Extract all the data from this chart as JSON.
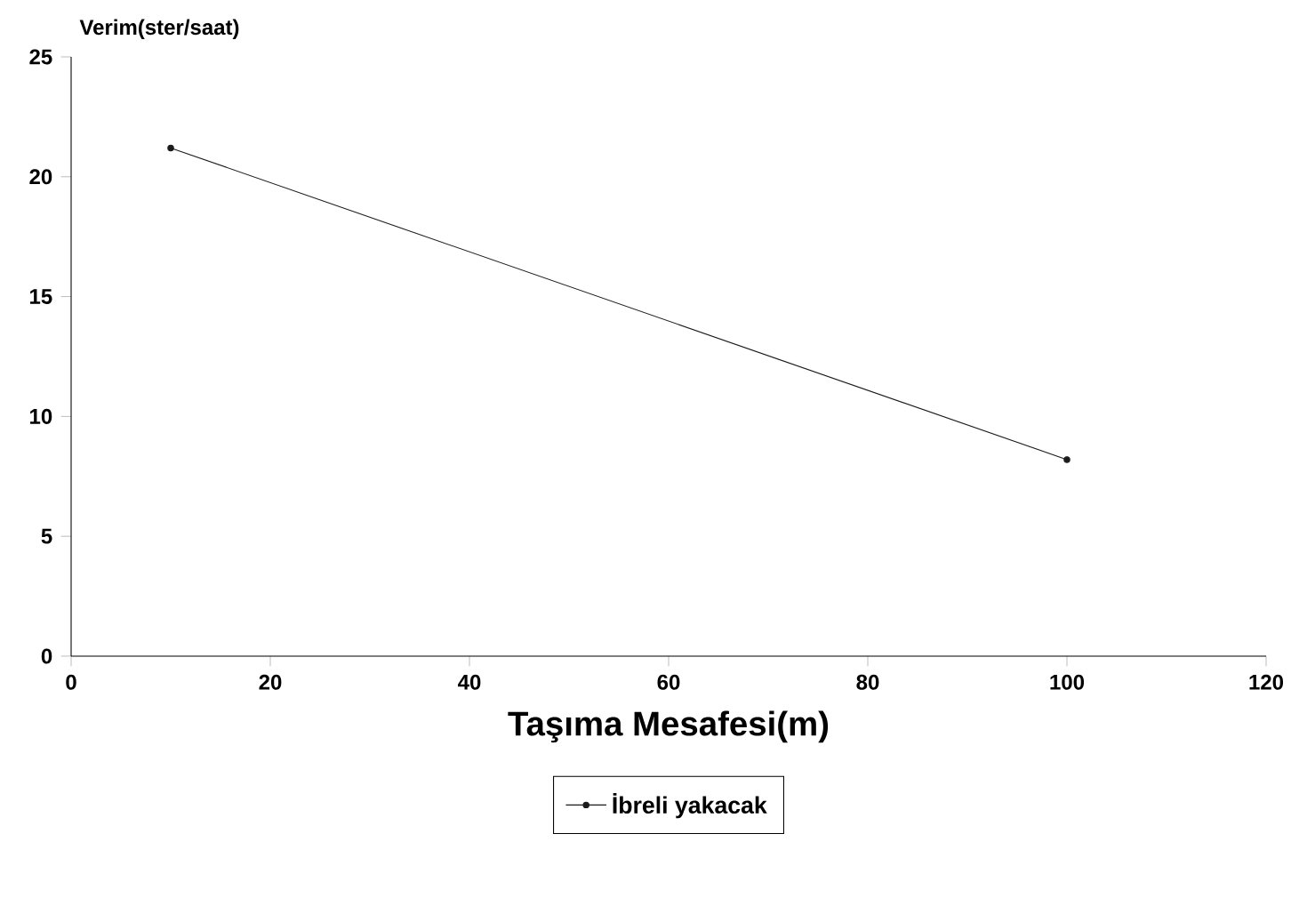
{
  "chart_data": {
    "type": "line",
    "xlabel": "Taşıma Mesafesi(m)",
    "ylabel": "Verim(ster/saat)",
    "x": [
      10,
      100
    ],
    "series": [
      {
        "name": "İbreli yakacak",
        "color": "#1a1a1a",
        "values": [
          21.2,
          8.2
        ]
      }
    ],
    "xlim": [
      0,
      120
    ],
    "xticks": [
      0,
      20,
      40,
      60,
      80,
      100,
      120
    ],
    "ylim": [
      0,
      25
    ],
    "yticks": [
      0,
      5,
      10,
      15,
      20,
      25
    ],
    "grid": false,
    "legend": "bottom",
    "marker": "circle",
    "line_style": "solid"
  }
}
